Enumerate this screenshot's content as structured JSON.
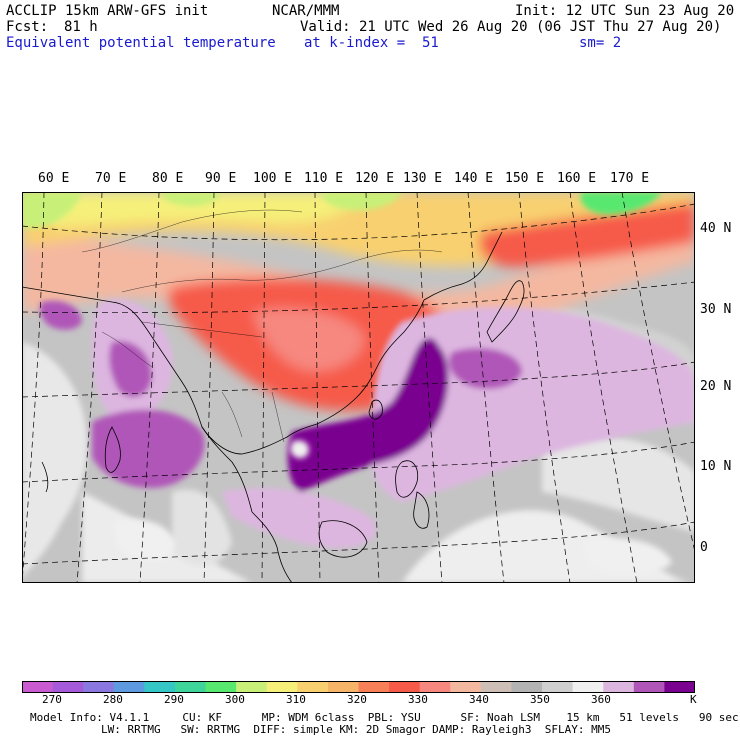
{
  "header": {
    "left_line1": "ACCLIP 15km ARW-GFS init",
    "center_line1": "NCAR/MMM",
    "right_line1": "Init: 12 UTC Sun 23 Aug 20",
    "fcst_label": "Fcst:",
    "fcst_value": "81 h",
    "valid_line": "Valid: 21 UTC Wed 26 Aug 20 (06 JST Thu 27 Aug 20)",
    "field_name": "Equivalent potential temperature",
    "level_line": "at k-index =  51",
    "smooth_line": "sm= 2"
  },
  "map": {
    "longitude_labels": [
      "60 E",
      "70 E",
      "80 E",
      "90 E",
      "100 E",
      "110 E",
      "120 E",
      "130 E",
      "140 E",
      "150 E",
      "160 E",
      "170 E"
    ],
    "latitude_labels": [
      "40 N",
      "30 N",
      "20 N",
      "10 N",
      "0"
    ]
  },
  "colorbar": {
    "unit": "K",
    "tick_labels": [
      "270",
      "280",
      "290",
      "300",
      "310",
      "320",
      "330",
      "340",
      "350",
      "360"
    ],
    "colors": [
      "#c95ad0",
      "#a45ad9",
      "#8a78e0",
      "#5e9ae0",
      "#35c6c6",
      "#3ed49a",
      "#58e870",
      "#c8f078",
      "#f6f07a",
      "#f8d070",
      "#f6b468",
      "#f78058",
      "#f65a48",
      "#f68880",
      "#f4b8a0",
      "#cdbfb5",
      "#b3b3b3",
      "#cfcfcf",
      "#f0f0f0",
      "#ddb6e0",
      "#b056b8",
      "#7a0090"
    ]
  },
  "footer": {
    "line1": "Model Info: V4.1.1     CU: KF      MP: WDM 6class  PBL: YSU      SF: Noah LSM    15 km   51 levels   90 sec",
    "line2": "LW: RRTMG   SW: RRTMG  DIFF: simple KM: 2D Smagor DAMP: Rayleigh3  SFLAY: MM5"
  }
}
